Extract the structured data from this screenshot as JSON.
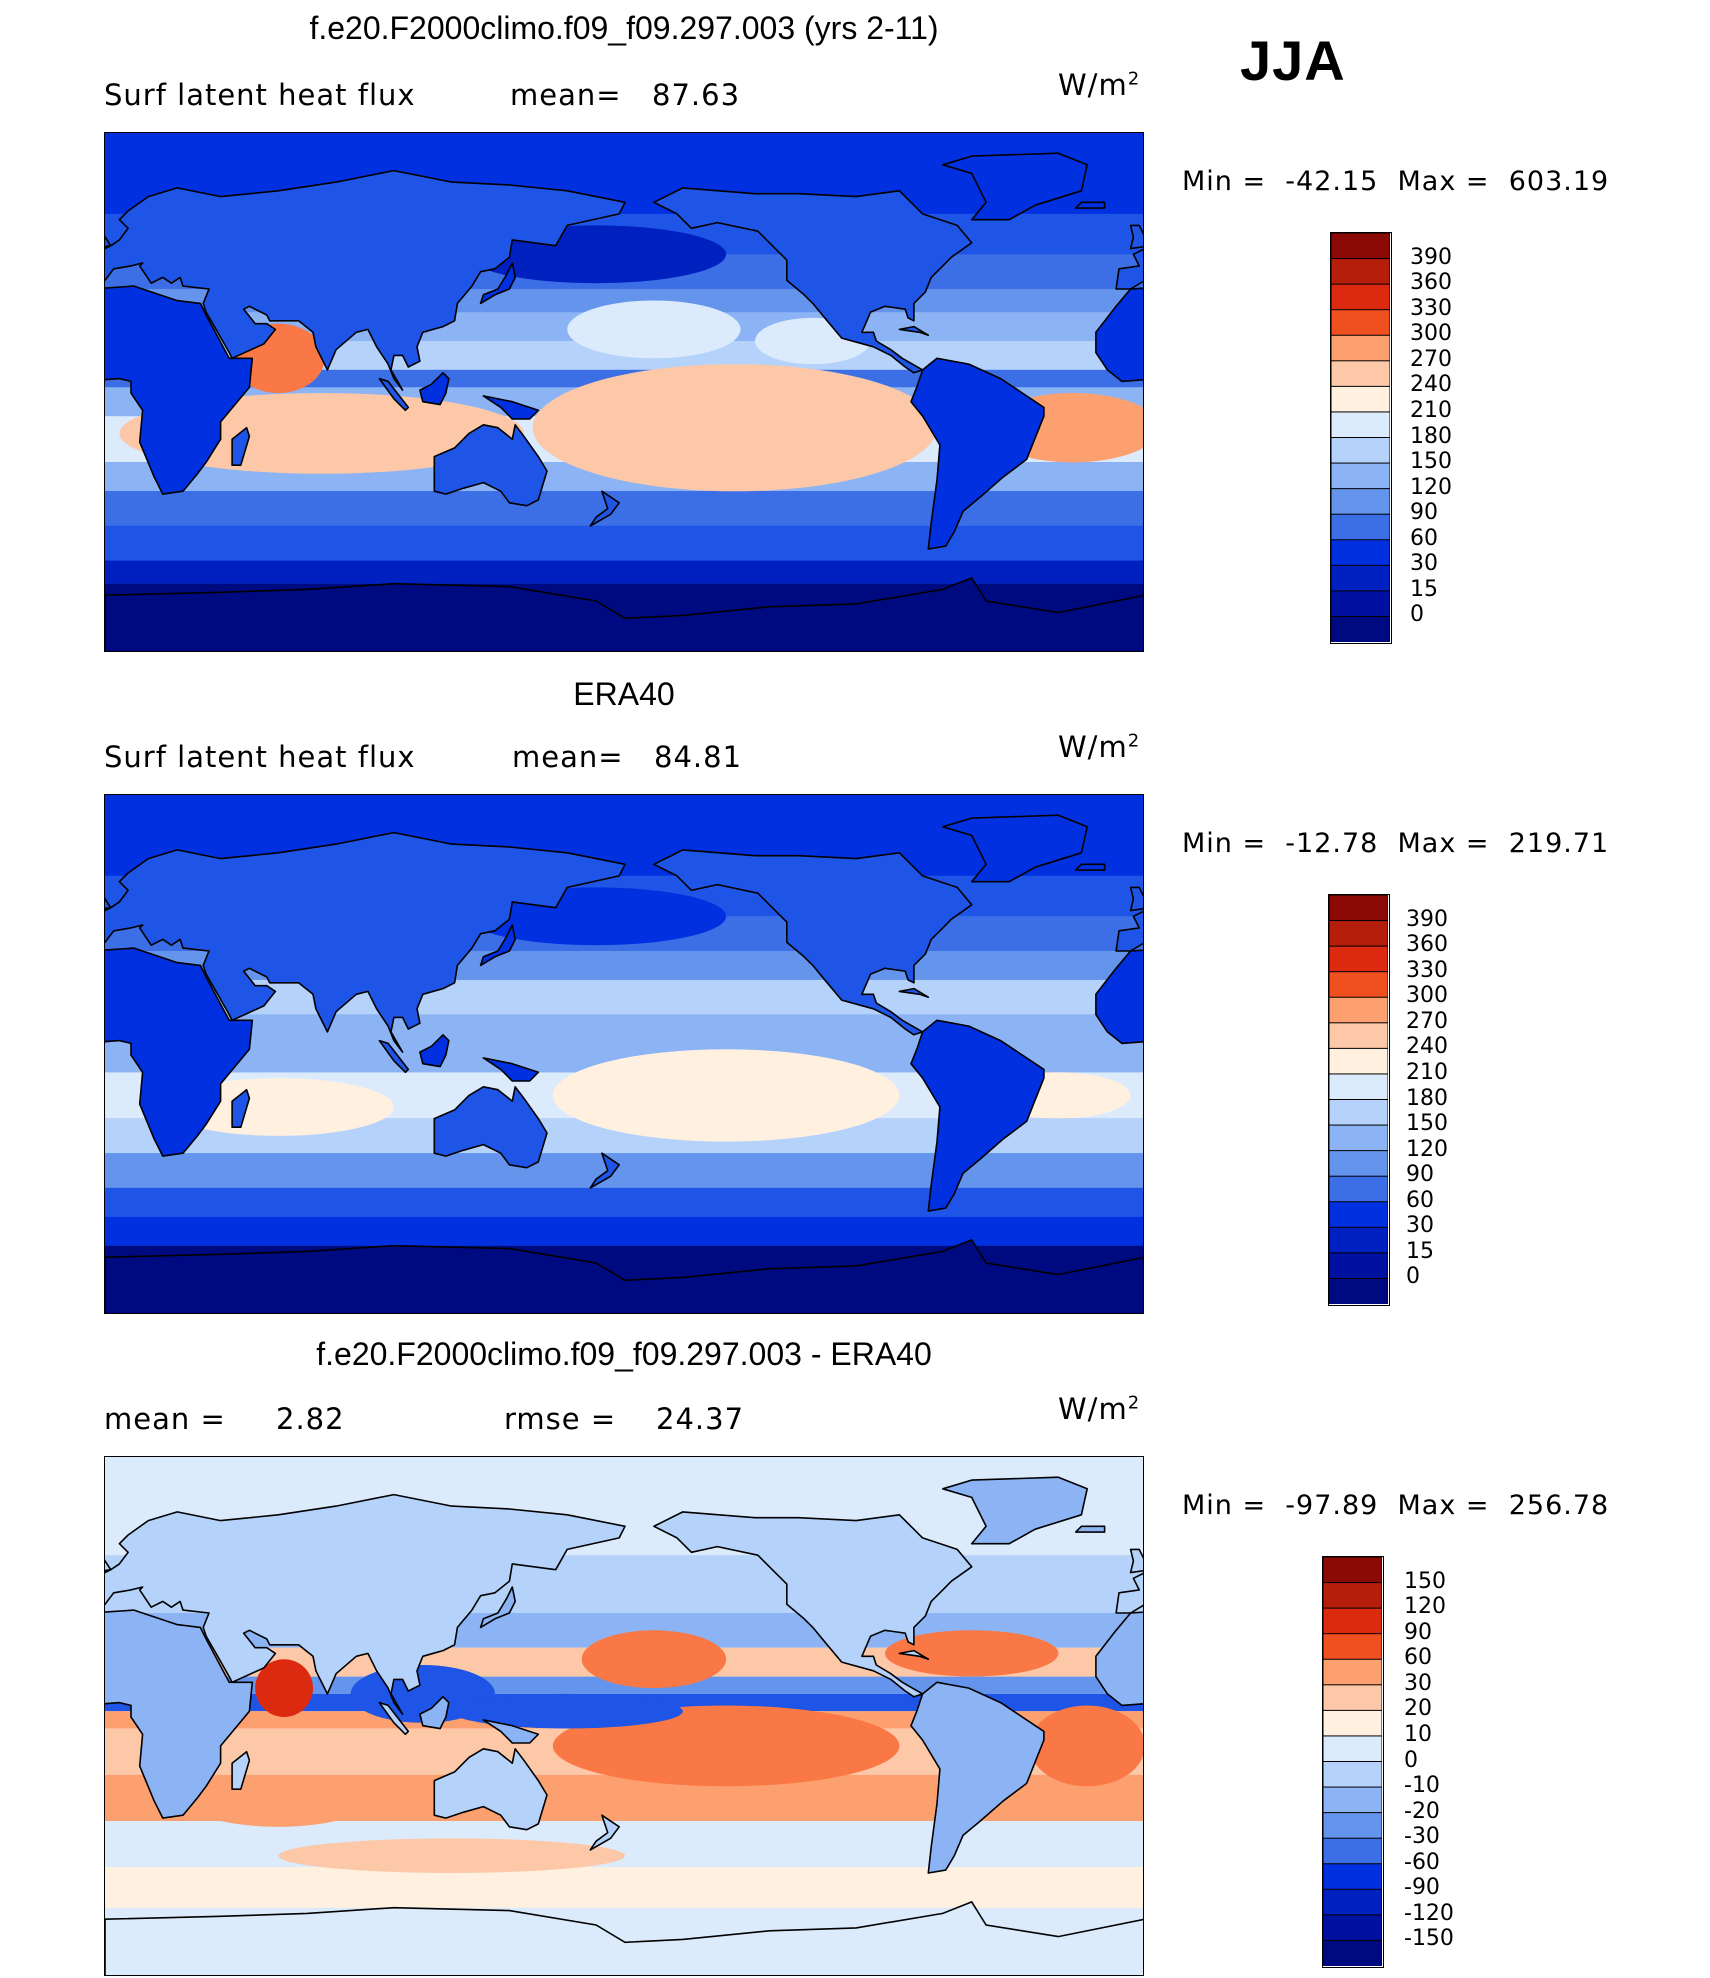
{
  "season": "JJA",
  "colors": {
    "abs_scale": [
      "#000a80",
      "#0010a0",
      "#0020c0",
      "#0030e0",
      "#1e55e6",
      "#3c6ee6",
      "#6494ec",
      "#8cb4f5",
      "#b4d2fa",
      "#dcebfc",
      "#fff0e0",
      "#fcc8a8",
      "#fca070",
      "#fa7846",
      "#f05020",
      "#dc2a10",
      "#b41e0a",
      "#8c0a05"
    ],
    "diff_scale": [
      "#000a80",
      "#0010a0",
      "#0020c0",
      "#0030e0",
      "#1e55e6",
      "#3c6ee6",
      "#6494ec",
      "#8cb4f5",
      "#b4d2fa",
      "#dcebfc",
      "#fff0e0",
      "#fcc8a8",
      "#fca070",
      "#fa7846",
      "#f05020",
      "#dc2a10",
      "#b41e0a",
      "#8c0a05"
    ]
  },
  "panels": [
    {
      "title": "f.e20.F2000climo.f09_f09.297.003 (yrs 2-11)",
      "left_label": "Surf latent heat flux",
      "stat1_label": "mean=",
      "stat1_value": "87.63",
      "stat2_label": "",
      "stat2_value": "",
      "units": "W/m",
      "units_exp": "2",
      "min_label": "Min",
      "min_value": "-42.15",
      "max_label": "Max",
      "max_value": "603.19",
      "colorbar_levels": [
        "390",
        "360",
        "330",
        "300",
        "270",
        "240",
        "210",
        "180",
        "150",
        "120",
        "90",
        "60",
        "30",
        "15",
        "0"
      ],
      "map_style": "model"
    },
    {
      "title": "ERA40",
      "left_label": "Surf latent heat flux",
      "stat1_label": "mean=",
      "stat1_value": "84.81",
      "stat2_label": "",
      "stat2_value": "",
      "units": "W/m",
      "units_exp": "2",
      "min_label": "Min",
      "min_value": "-12.78",
      "max_label": "Max",
      "max_value": "219.71",
      "colorbar_levels": [
        "390",
        "360",
        "330",
        "300",
        "270",
        "240",
        "210",
        "180",
        "150",
        "120",
        "90",
        "60",
        "30",
        "15",
        "0"
      ],
      "map_style": "obs"
    },
    {
      "title": "f.e20.F2000climo.f09_f09.297.003 - ERA40",
      "left_label": "mean =",
      "stat1_label": "",
      "stat1_value": "2.82",
      "stat2_label": "rmse =",
      "stat2_value": "24.37",
      "units": "W/m",
      "units_exp": "2",
      "min_label": "Min",
      "min_value": "-97.89",
      "max_label": "Max",
      "max_value": "256.78",
      "colorbar_levels": [
        "150",
        "120",
        "90",
        "60",
        "30",
        "20",
        "10",
        "0",
        "-10",
        "-20",
        "-30",
        "-60",
        "-90",
        "-120",
        "-150"
      ],
      "map_style": "diff"
    }
  ]
}
